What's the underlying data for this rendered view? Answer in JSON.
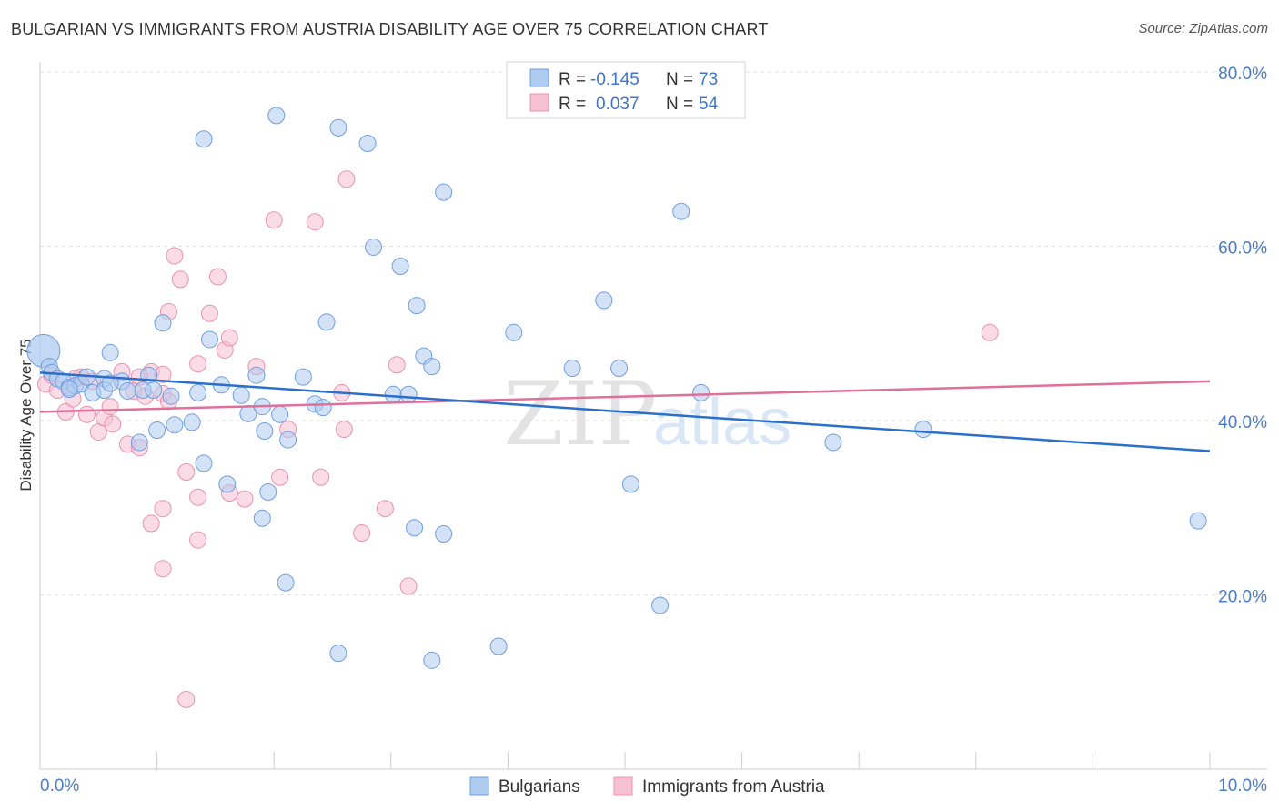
{
  "title": "BULGARIAN VS IMMIGRANTS FROM AUSTRIA DISABILITY AGE OVER 75 CORRELATION CHART",
  "source": "Source: ZipAtlas.com",
  "watermark": {
    "zip": "ZIP",
    "atlas": "atlas"
  },
  "colors": {
    "bulgarians_fill": "#aecbf0",
    "bulgarians_stroke": "#6f9fdd",
    "bulgarians_line": "#2a6fcc",
    "austria_fill": "#f7c0d2",
    "austria_stroke": "#e892ae",
    "austria_line": "#e0709a",
    "axis_label": "#4a7cc9",
    "grid": "#dddddd"
  },
  "stats_legend": {
    "rows": [
      {
        "r_label": "R =",
        "r_value": "-0.145",
        "n_label": "N =",
        "n_value": "73"
      },
      {
        "r_label": "R =",
        "r_value": "0.037",
        "n_label": "N =",
        "n_value": "54"
      }
    ]
  },
  "bottom_legend": {
    "items": [
      {
        "label": "Bulgarians"
      },
      {
        "label": "Immigrants from Austria"
      }
    ]
  },
  "chart_data": {
    "type": "scatter",
    "title": "BULGARIAN VS IMMIGRANTS FROM AUSTRIA DISABILITY AGE OVER 75 CORRELATION CHART",
    "xlabel": "",
    "ylabel": "Disability Age Over 75",
    "xlim": [
      0,
      10
    ],
    "ylim": [
      0,
      84
    ],
    "x_tick_labels": [
      {
        "value": 0,
        "label": "0.0%"
      },
      {
        "value": 10,
        "label": "10.0%"
      }
    ],
    "y_tick_labels": [
      {
        "value": 20,
        "label": "20.0%"
      },
      {
        "value": 40,
        "label": "40.0%"
      },
      {
        "value": 60,
        "label": "60.0%"
      },
      {
        "value": 80,
        "label": "80.0%"
      }
    ],
    "x_minor_ticks": [
      1,
      2,
      3,
      4,
      5,
      6,
      7,
      8,
      9,
      10
    ],
    "grid": true,
    "legend_position": "top-center",
    "series": [
      {
        "name": "Bulgarians",
        "color": "#aecbf0",
        "trend": {
          "x": [
            0,
            10
          ],
          "y": [
            45.5,
            36.5
          ]
        },
        "points": [
          [
            0.03,
            48.0
          ],
          [
            0.08,
            46.2
          ],
          [
            0.1,
            45.5
          ],
          [
            0.15,
            44.8
          ],
          [
            0.2,
            44.5
          ],
          [
            0.25,
            43.8
          ],
          [
            0.3,
            44.0
          ],
          [
            0.35,
            44.2
          ],
          [
            0.45,
            43.2
          ],
          [
            0.55,
            44.8
          ],
          [
            0.55,
            43.5
          ],
          [
            0.6,
            47.8
          ],
          [
            0.7,
            44.5
          ],
          [
            0.75,
            43.4
          ],
          [
            0.88,
            43.5
          ],
          [
            0.93,
            45.2
          ],
          [
            0.97,
            43.5
          ],
          [
            1.0,
            38.9
          ],
          [
            1.05,
            51.2
          ],
          [
            1.12,
            42.8
          ],
          [
            1.15,
            39.5
          ],
          [
            1.35,
            43.2
          ],
          [
            1.45,
            49.3
          ],
          [
            1.55,
            44.1
          ],
          [
            1.72,
            42.9
          ],
          [
            1.78,
            40.8
          ],
          [
            1.85,
            45.2
          ],
          [
            1.9,
            41.6
          ],
          [
            1.92,
            38.8
          ],
          [
            2.05,
            40.7
          ],
          [
            2.12,
            37.8
          ],
          [
            1.4,
            35.1
          ],
          [
            1.6,
            32.7
          ],
          [
            1.95,
            31.8
          ],
          [
            2.25,
            45.0
          ],
          [
            2.35,
            41.9
          ],
          [
            2.42,
            41.5
          ],
          [
            2.45,
            51.3
          ],
          [
            3.02,
            43.0
          ],
          [
            3.15,
            43.0
          ],
          [
            3.28,
            47.4
          ],
          [
            3.35,
            46.2
          ],
          [
            4.55,
            46.0
          ],
          [
            4.95,
            46.0
          ],
          [
            5.65,
            43.2
          ],
          [
            6.78,
            37.5
          ],
          [
            7.55,
            39.0
          ],
          [
            9.9,
            28.5
          ],
          [
            1.9,
            28.8
          ],
          [
            3.2,
            27.7
          ],
          [
            3.45,
            27.0
          ],
          [
            5.05,
            32.7
          ],
          [
            5.3,
            18.8
          ],
          [
            2.1,
            21.4
          ],
          [
            2.55,
            13.3
          ],
          [
            3.35,
            12.5
          ],
          [
            3.92,
            14.1
          ],
          [
            0.85,
            37.5
          ],
          [
            1.4,
            72.3
          ],
          [
            2.02,
            75.0
          ],
          [
            2.55,
            73.6
          ],
          [
            2.8,
            71.8
          ],
          [
            3.45,
            66.2
          ],
          [
            5.48,
            64.0
          ],
          [
            2.85,
            59.9
          ],
          [
            3.08,
            57.7
          ],
          [
            3.22,
            53.2
          ],
          [
            4.05,
            50.1
          ],
          [
            4.82,
            53.8
          ],
          [
            0.25,
            43.6
          ],
          [
            0.6,
            44.3
          ],
          [
            1.3,
            39.8
          ],
          [
            0.4,
            45.0
          ]
        ]
      },
      {
        "name": "Immigrants from Austria",
        "color": "#f7c0d2",
        "trend": {
          "x": [
            0,
            10
          ],
          "y": [
            41.0,
            44.5
          ]
        },
        "points": [
          [
            0.05,
            44.2
          ],
          [
            0.1,
            45.2
          ],
          [
            0.15,
            43.5
          ],
          [
            0.22,
            41.0
          ],
          [
            0.28,
            42.5
          ],
          [
            0.35,
            45.0
          ],
          [
            0.4,
            40.7
          ],
          [
            0.45,
            44.5
          ],
          [
            0.5,
            38.7
          ],
          [
            0.55,
            40.3
          ],
          [
            0.6,
            41.6
          ],
          [
            0.62,
            39.6
          ],
          [
            0.7,
            45.6
          ],
          [
            0.75,
            37.3
          ],
          [
            0.8,
            43.4
          ],
          [
            0.85,
            36.9
          ],
          [
            0.9,
            42.8
          ],
          [
            0.95,
            45.6
          ],
          [
            1.05,
            45.3
          ],
          [
            1.05,
            43.1
          ],
          [
            1.1,
            42.2
          ],
          [
            1.1,
            52.5
          ],
          [
            1.15,
            58.9
          ],
          [
            1.2,
            56.2
          ],
          [
            1.25,
            34.1
          ],
          [
            1.35,
            46.5
          ],
          [
            1.45,
            52.3
          ],
          [
            1.52,
            56.5
          ],
          [
            1.58,
            48.1
          ],
          [
            1.62,
            49.5
          ],
          [
            1.85,
            46.2
          ],
          [
            2.0,
            63.0
          ],
          [
            2.35,
            62.8
          ],
          [
            2.62,
            67.7
          ],
          [
            3.05,
            46.4
          ],
          [
            2.58,
            43.2
          ],
          [
            2.6,
            39.0
          ],
          [
            2.12,
            39.0
          ],
          [
            2.4,
            33.5
          ],
          [
            2.05,
            33.5
          ],
          [
            1.62,
            31.7
          ],
          [
            1.75,
            31.0
          ],
          [
            1.35,
            31.2
          ],
          [
            1.05,
            29.9
          ],
          [
            0.95,
            28.2
          ],
          [
            1.35,
            26.3
          ],
          [
            1.05,
            23.0
          ],
          [
            2.95,
            29.9
          ],
          [
            2.75,
            27.1
          ],
          [
            3.15,
            21.0
          ],
          [
            1.25,
            8.0
          ],
          [
            8.12,
            50.1
          ],
          [
            0.3,
            44.8
          ],
          [
            0.85,
            45.0
          ]
        ]
      }
    ]
  }
}
